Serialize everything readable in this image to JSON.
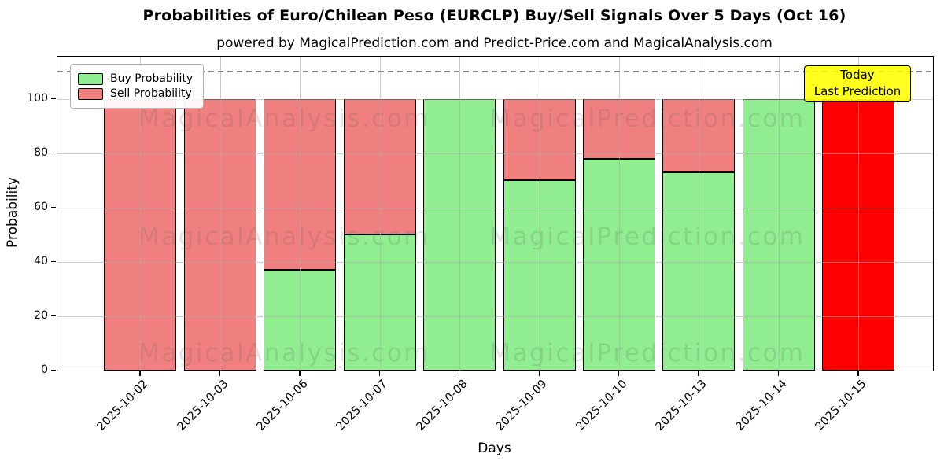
{
  "chart_data": {
    "type": "bar",
    "stacked": true,
    "title": "Probabilities of Euro/Chilean Peso (EURCLP) Buy/Sell Signals Over 5 Days (Oct 16)",
    "subtitle": "powered by MagicalPrediction.com and Predict-Price.com and MagicalAnalysis.com",
    "xlabel": "Days",
    "ylabel": "Probability",
    "categories": [
      "2025-10-02",
      "2025-10-03",
      "2025-10-06",
      "2025-10-07",
      "2025-10-08",
      "2025-10-09",
      "2025-10-10",
      "2025-10-13",
      "2025-10-14",
      "2025-10-15"
    ],
    "series": [
      {
        "name": "Buy Probability",
        "color": "#90EE90",
        "values": [
          0,
          0,
          37,
          50,
          100,
          70,
          78,
          73,
          100,
          0
        ]
      },
      {
        "name": "Sell Probability",
        "color": "#F08080",
        "values": [
          100,
          100,
          63,
          50,
          0,
          30,
          22,
          27,
          0,
          100
        ]
      }
    ],
    "today_bar": {
      "category": "2025-10-15",
      "color": "#FF0000",
      "value": 100,
      "series": "Sell Probability"
    },
    "yticks": [
      0,
      20,
      40,
      60,
      80,
      100
    ],
    "ylim": [
      0,
      115.5
    ],
    "reference_line_y": 110,
    "grid": true,
    "legend_position": "upper left",
    "annotation": {
      "lines": [
        "Today",
        "Last Prediction"
      ],
      "bg_color": "#FFFF00"
    },
    "watermarks": {
      "left_text": "MagicalAnalysis.com",
      "right_text": "MagicalPrediction.com"
    },
    "bar_edge_color": "#000000"
  }
}
